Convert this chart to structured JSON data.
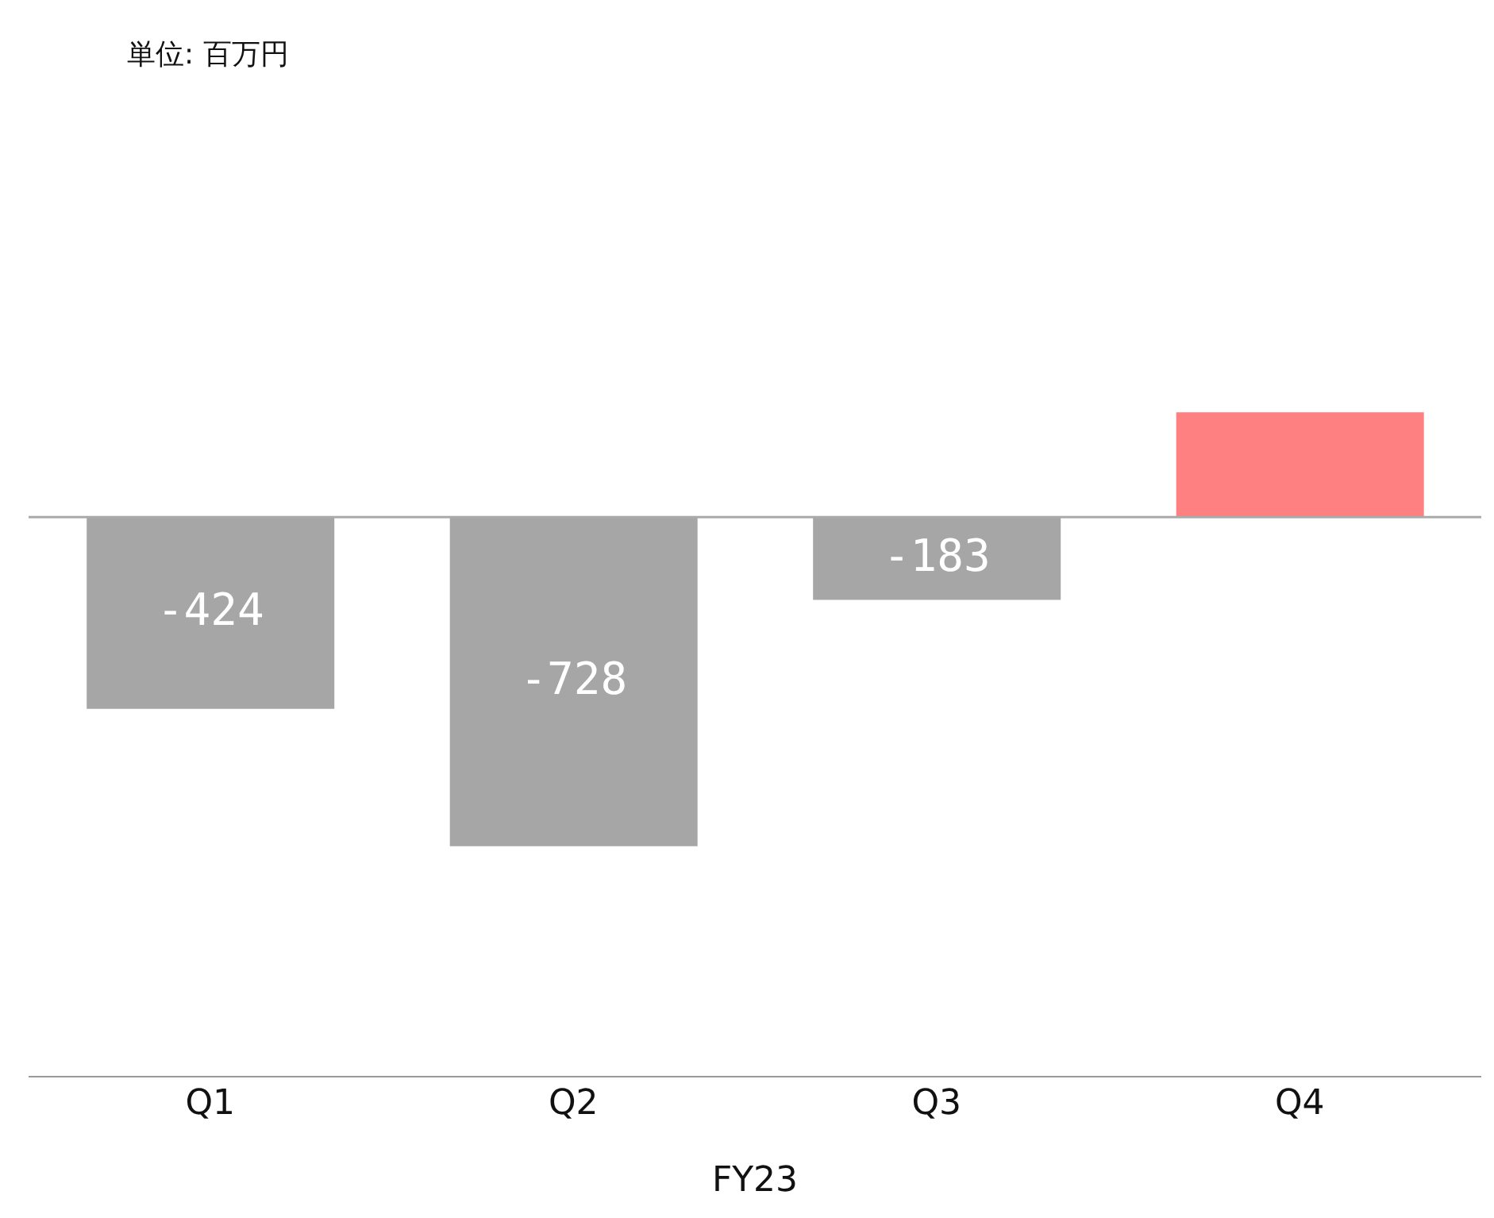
{
  "chart_data": {
    "type": "bar",
    "annotations": [
      "単位: 百万円"
    ],
    "xlabel": "FY23",
    "categories": [
      "Q1",
      "Q2",
      "Q3",
      "Q4"
    ],
    "values": [
      -424,
      -728,
      -183,
      232
    ],
    "colors": [
      "#a6a6a6",
      "#a6a6a6",
      "#a6a6a6",
      "#ff8080"
    ],
    "value_labels": [
      "-424",
      "-728",
      "-183",
      null
    ],
    "ref_lines": [
      {
        "axis": "y",
        "value": 0,
        "color": "#aaaaaa"
      }
    ]
  }
}
